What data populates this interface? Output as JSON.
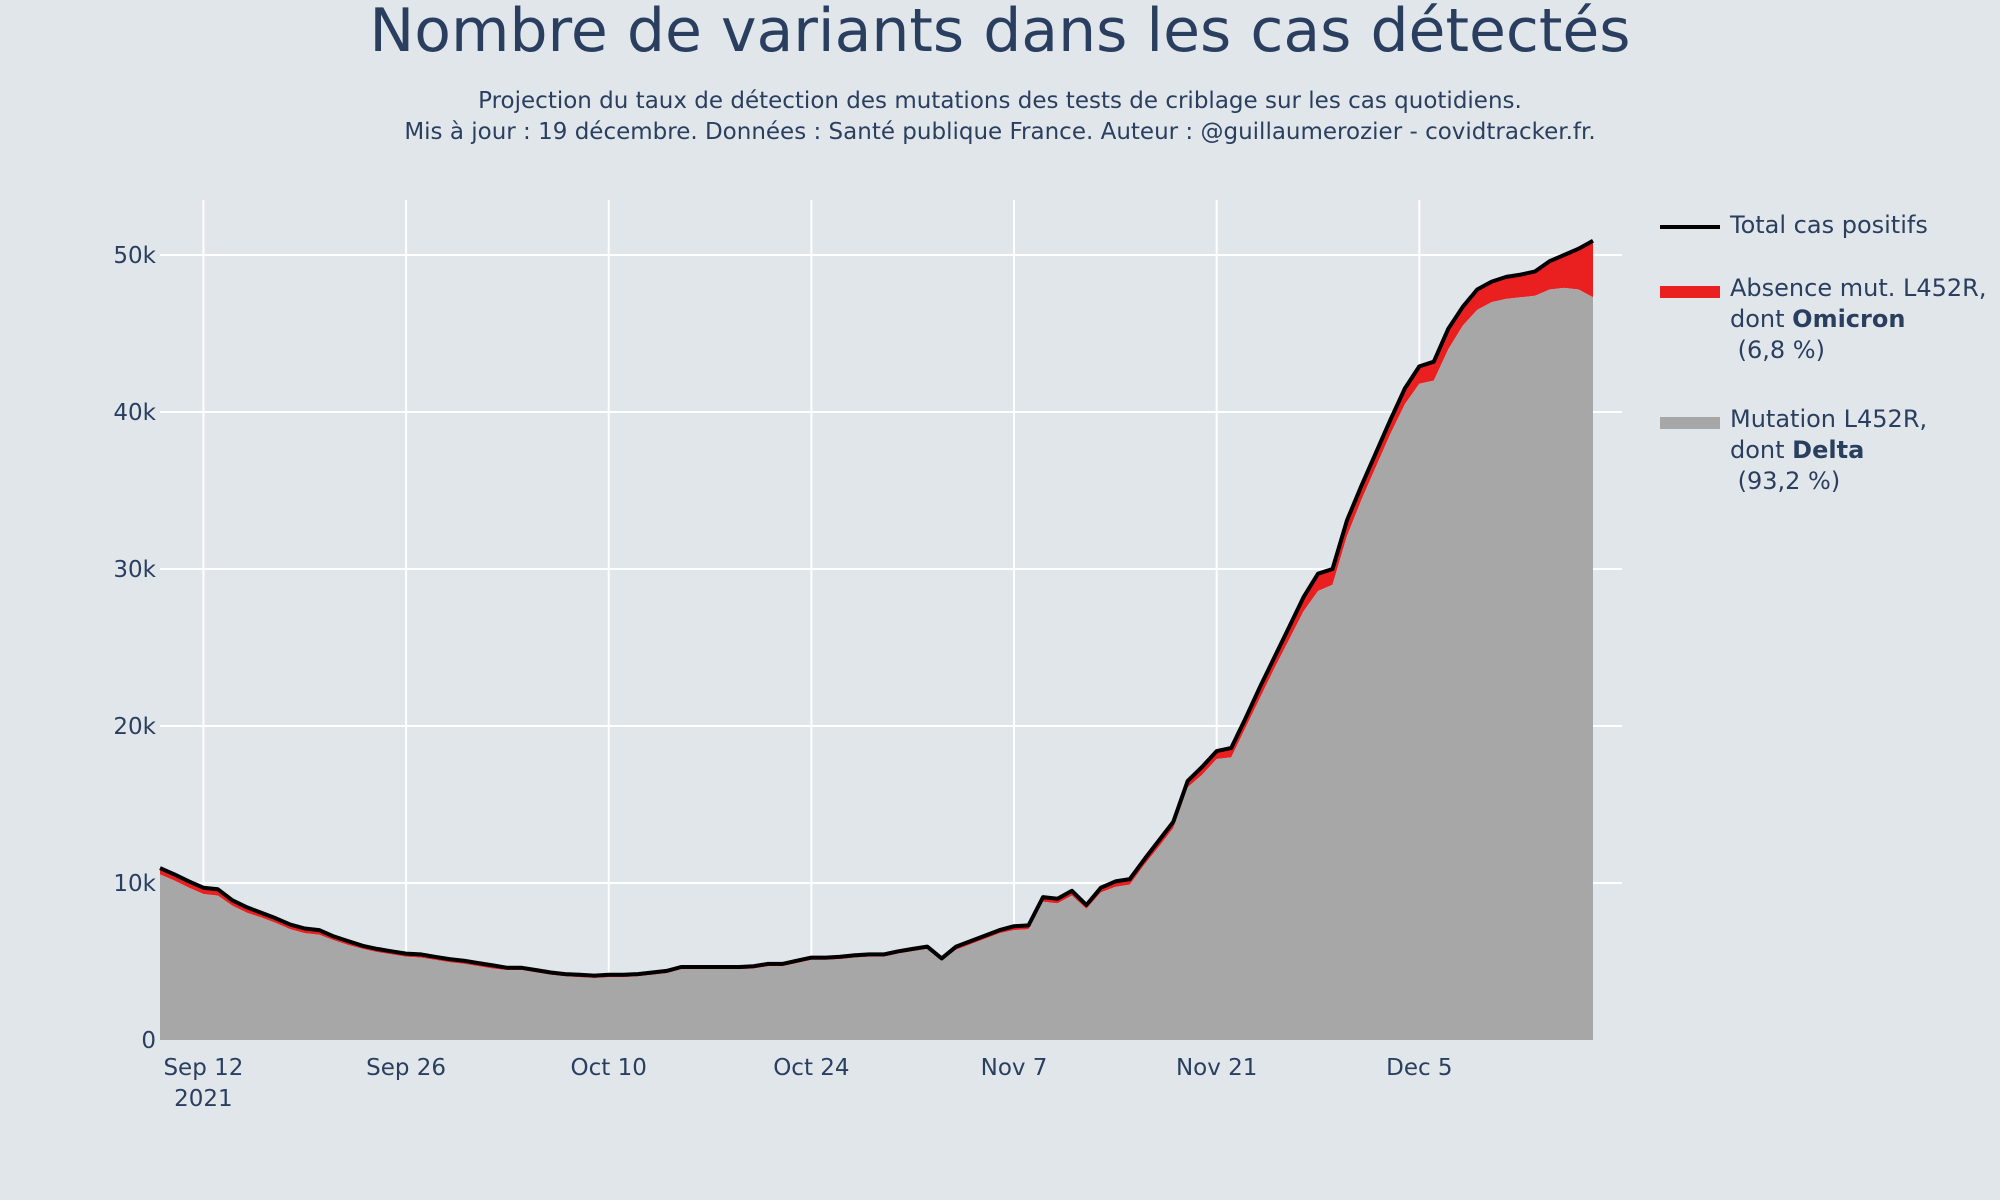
{
  "header": {
    "title": "Nombre de variants dans les cas détectés",
    "subtitle_line1": "Projection du taux de détection des mutations des tests de criblage sur les cas quotidiens.",
    "subtitle_line2": "Mis à jour : 19 décembre. Données : Santé publique France. Auteur : @guillaumerozier - covidtracker.fr."
  },
  "legend": {
    "total": {
      "label": "Total cas positifs",
      "color": "#000000"
    },
    "omicron": {
      "label_prefix": "Absence mut. L452R,",
      "label_dont": "dont ",
      "label_bold": "Omicron",
      "label_pct": " (6,8 %)",
      "color": "#ea2020"
    },
    "delta": {
      "label_prefix": "Mutation L452R,",
      "label_dont": "dont ",
      "label_bold": "Delta",
      "label_pct": " (93,2 %)",
      "color": "#a7a7a8"
    }
  },
  "colors": {
    "background": "#e1e6eb",
    "grid": "#ffffff",
    "text": "#2a3f5f"
  },
  "chart_data": {
    "type": "area",
    "title": "Nombre de variants dans les cas détectés",
    "x_type": "date",
    "xlim": [
      "2021-09-09",
      "2021-12-19"
    ],
    "ylim": [
      0,
      53500
    ],
    "x_ticks": [
      {
        "date": "2021-09-12",
        "label": "Sep 12",
        "year": "2021"
      },
      {
        "date": "2021-09-26",
        "label": "Sep 26"
      },
      {
        "date": "2021-10-10",
        "label": "Oct 10"
      },
      {
        "date": "2021-10-24",
        "label": "Oct 24"
      },
      {
        "date": "2021-11-07",
        "label": "Nov 7"
      },
      {
        "date": "2021-11-21",
        "label": "Nov 21"
      },
      {
        "date": "2021-12-05",
        "label": "Dec 5"
      }
    ],
    "y_ticks": [
      {
        "value": 0,
        "label": "0"
      },
      {
        "value": 10000,
        "label": "10k"
      },
      {
        "value": 20000,
        "label": "20k"
      },
      {
        "value": 30000,
        "label": "30k"
      },
      {
        "value": 40000,
        "label": "40k"
      },
      {
        "value": 50000,
        "label": "50k"
      }
    ],
    "grid": true,
    "legend_position": "right",
    "series": [
      {
        "name": "Total cas positifs",
        "points": [
          [
            "2021-09-09",
            10950
          ],
          [
            "2021-09-10",
            10550
          ],
          [
            "2021-09-11",
            10100
          ],
          [
            "2021-09-12",
            9700
          ],
          [
            "2021-09-13",
            9600
          ],
          [
            "2021-09-14",
            8900
          ],
          [
            "2021-09-15",
            8450
          ],
          [
            "2021-09-16",
            8100
          ],
          [
            "2021-09-17",
            7750
          ],
          [
            "2021-09-18",
            7350
          ],
          [
            "2021-09-19",
            7100
          ],
          [
            "2021-09-20",
            7000
          ],
          [
            "2021-09-21",
            6600
          ],
          [
            "2021-09-22",
            6300
          ],
          [
            "2021-09-23",
            6000
          ],
          [
            "2021-09-24",
            5800
          ],
          [
            "2021-09-25",
            5650
          ],
          [
            "2021-09-26",
            5500
          ],
          [
            "2021-09-27",
            5450
          ],
          [
            "2021-09-28",
            5300
          ],
          [
            "2021-09-29",
            5150
          ],
          [
            "2021-09-30",
            5050
          ],
          [
            "2021-10-01",
            4900
          ],
          [
            "2021-10-02",
            4750
          ],
          [
            "2021-10-03",
            4600
          ],
          [
            "2021-10-04",
            4600
          ],
          [
            "2021-10-05",
            4450
          ],
          [
            "2021-10-06",
            4300
          ],
          [
            "2021-10-07",
            4200
          ],
          [
            "2021-10-08",
            4150
          ],
          [
            "2021-10-09",
            4100
          ],
          [
            "2021-10-10",
            4150
          ],
          [
            "2021-10-11",
            4150
          ],
          [
            "2021-10-12",
            4200
          ],
          [
            "2021-10-13",
            4300
          ],
          [
            "2021-10-14",
            4400
          ],
          [
            "2021-10-15",
            4650
          ],
          [
            "2021-10-16",
            4650
          ],
          [
            "2021-10-17",
            4650
          ],
          [
            "2021-10-18",
            4650
          ],
          [
            "2021-10-19",
            4650
          ],
          [
            "2021-10-20",
            4700
          ],
          [
            "2021-10-21",
            4850
          ],
          [
            "2021-10-22",
            4850
          ],
          [
            "2021-10-23",
            5050
          ],
          [
            "2021-10-24",
            5250
          ],
          [
            "2021-10-25",
            5250
          ],
          [
            "2021-10-26",
            5300
          ],
          [
            "2021-10-27",
            5400
          ],
          [
            "2021-10-28",
            5450
          ],
          [
            "2021-10-29",
            5450
          ],
          [
            "2021-10-30",
            5650
          ],
          [
            "2021-10-31",
            5800
          ],
          [
            "2021-11-01",
            5950
          ],
          [
            "2021-11-02",
            5200
          ],
          [
            "2021-11-03",
            5950
          ],
          [
            "2021-11-04",
            6300
          ],
          [
            "2021-11-05",
            6650
          ],
          [
            "2021-11-06",
            7000
          ],
          [
            "2021-11-07",
            7250
          ],
          [
            "2021-11-08",
            7300
          ],
          [
            "2021-11-09",
            9100
          ],
          [
            "2021-11-10",
            9000
          ],
          [
            "2021-11-11",
            9500
          ],
          [
            "2021-11-12",
            8600
          ],
          [
            "2021-11-13",
            9700
          ],
          [
            "2021-11-14",
            10100
          ],
          [
            "2021-11-15",
            10250
          ],
          [
            "2021-11-16",
            11500
          ],
          [
            "2021-11-17",
            12700
          ],
          [
            "2021-11-18",
            13900
          ],
          [
            "2021-11-19",
            16500
          ],
          [
            "2021-11-20",
            17400
          ],
          [
            "2021-11-21",
            18400
          ],
          [
            "2021-11-22",
            18600
          ],
          [
            "2021-11-23",
            20500
          ],
          [
            "2021-11-24",
            22500
          ],
          [
            "2021-11-25",
            24400
          ],
          [
            "2021-11-26",
            26300
          ],
          [
            "2021-11-27",
            28200
          ],
          [
            "2021-11-28",
            29700
          ],
          [
            "2021-11-29",
            30000
          ],
          [
            "2021-11-30",
            33100
          ],
          [
            "2021-12-01",
            35300
          ],
          [
            "2021-12-02",
            37400
          ],
          [
            "2021-12-03",
            39500
          ],
          [
            "2021-12-04",
            41500
          ],
          [
            "2021-12-05",
            42900
          ],
          [
            "2021-12-06",
            43200
          ],
          [
            "2021-12-07",
            45300
          ],
          [
            "2021-12-08",
            46700
          ],
          [
            "2021-12-09",
            47800
          ],
          [
            "2021-12-10",
            48300
          ],
          [
            "2021-12-11",
            48600
          ],
          [
            "2021-12-12",
            48750
          ],
          [
            "2021-12-13",
            48950
          ],
          [
            "2021-12-14",
            49600
          ],
          [
            "2021-12-15",
            50000
          ],
          [
            "2021-12-16",
            50400
          ],
          [
            "2021-12-17",
            50900
          ]
        ]
      },
      {
        "name": "Absence mut. L452R, dont Omicron",
        "stacked_on": "Mutation L452R, dont Delta"
      },
      {
        "name": "Mutation L452R, dont Delta",
        "points": [
          [
            "2021-09-09",
            10550
          ],
          [
            "2021-09-10",
            10150
          ],
          [
            "2021-09-11",
            9700
          ],
          [
            "2021-09-12",
            9300
          ],
          [
            "2021-09-13",
            9200
          ],
          [
            "2021-09-14",
            8550
          ],
          [
            "2021-09-15",
            8100
          ],
          [
            "2021-09-16",
            7800
          ],
          [
            "2021-09-17",
            7450
          ],
          [
            "2021-09-18",
            7050
          ],
          [
            "2021-09-19",
            6800
          ],
          [
            "2021-09-20",
            6700
          ],
          [
            "2021-09-21",
            6350
          ],
          [
            "2021-09-22",
            6050
          ],
          [
            "2021-09-23",
            5800
          ],
          [
            "2021-09-24",
            5600
          ],
          [
            "2021-09-25",
            5450
          ],
          [
            "2021-09-26",
            5300
          ],
          [
            "2021-09-27",
            5250
          ],
          [
            "2021-09-28",
            5100
          ],
          [
            "2021-09-29",
            4950
          ],
          [
            "2021-09-30",
            4850
          ],
          [
            "2021-10-01",
            4700
          ],
          [
            "2021-10-02",
            4550
          ],
          [
            "2021-10-03",
            4450
          ],
          [
            "2021-10-04",
            4450
          ],
          [
            "2021-10-05",
            4300
          ],
          [
            "2021-10-06",
            4150
          ],
          [
            "2021-10-07",
            4050
          ],
          [
            "2021-10-08",
            4000
          ],
          [
            "2021-10-09",
            3950
          ],
          [
            "2021-10-10",
            4000
          ],
          [
            "2021-10-11",
            4000
          ],
          [
            "2021-10-12",
            4050
          ],
          [
            "2021-10-13",
            4150
          ],
          [
            "2021-10-14",
            4250
          ],
          [
            "2021-10-15",
            4500
          ],
          [
            "2021-10-16",
            4500
          ],
          [
            "2021-10-17",
            4500
          ],
          [
            "2021-10-18",
            4500
          ],
          [
            "2021-10-19",
            4500
          ],
          [
            "2021-10-20",
            4550
          ],
          [
            "2021-10-21",
            4700
          ],
          [
            "2021-10-22",
            4700
          ],
          [
            "2021-10-23",
            4900
          ],
          [
            "2021-10-24",
            5100
          ],
          [
            "2021-10-25",
            5100
          ],
          [
            "2021-10-26",
            5150
          ],
          [
            "2021-10-27",
            5250
          ],
          [
            "2021-10-28",
            5300
          ],
          [
            "2021-10-29",
            5300
          ],
          [
            "2021-10-30",
            5500
          ],
          [
            "2021-10-31",
            5650
          ],
          [
            "2021-11-01",
            5800
          ],
          [
            "2021-11-02",
            5050
          ],
          [
            "2021-11-03",
            5750
          ],
          [
            "2021-11-04",
            6100
          ],
          [
            "2021-11-05",
            6450
          ],
          [
            "2021-11-06",
            6800
          ],
          [
            "2021-11-07",
            7000
          ],
          [
            "2021-11-08",
            7050
          ],
          [
            "2021-11-09",
            8800
          ],
          [
            "2021-11-10",
            8700
          ],
          [
            "2021-11-11",
            9200
          ],
          [
            "2021-11-12",
            8350
          ],
          [
            "2021-11-13",
            9400
          ],
          [
            "2021-11-14",
            9750
          ],
          [
            "2021-11-15",
            9900
          ],
          [
            "2021-11-16",
            11150
          ],
          [
            "2021-11-17",
            12300
          ],
          [
            "2021-11-18",
            13500
          ],
          [
            "2021-11-19",
            16100
          ],
          [
            "2021-11-20",
            16900
          ],
          [
            "2021-11-21",
            17900
          ],
          [
            "2021-11-22",
            18000
          ],
          [
            "2021-11-23",
            19900
          ],
          [
            "2021-11-24",
            21800
          ],
          [
            "2021-11-25",
            23700
          ],
          [
            "2021-11-26",
            25500
          ],
          [
            "2021-11-27",
            27300
          ],
          [
            "2021-11-28",
            28600
          ],
          [
            "2021-11-29",
            29000
          ],
          [
            "2021-11-30",
            32100
          ],
          [
            "2021-12-01",
            34400
          ],
          [
            "2021-12-02",
            36500
          ],
          [
            "2021-12-03",
            38600
          ],
          [
            "2021-12-04",
            40500
          ],
          [
            "2021-12-05",
            41800
          ],
          [
            "2021-12-06",
            42000
          ],
          [
            "2021-12-07",
            44000
          ],
          [
            "2021-12-08",
            45500
          ],
          [
            "2021-12-09",
            46500
          ],
          [
            "2021-12-10",
            47000
          ],
          [
            "2021-12-11",
            47200
          ],
          [
            "2021-12-12",
            47300
          ],
          [
            "2021-12-13",
            47400
          ],
          [
            "2021-12-14",
            47800
          ],
          [
            "2021-12-15",
            47900
          ],
          [
            "2021-12-16",
            47800
          ],
          [
            "2021-12-17",
            47300
          ]
        ]
      }
    ]
  }
}
